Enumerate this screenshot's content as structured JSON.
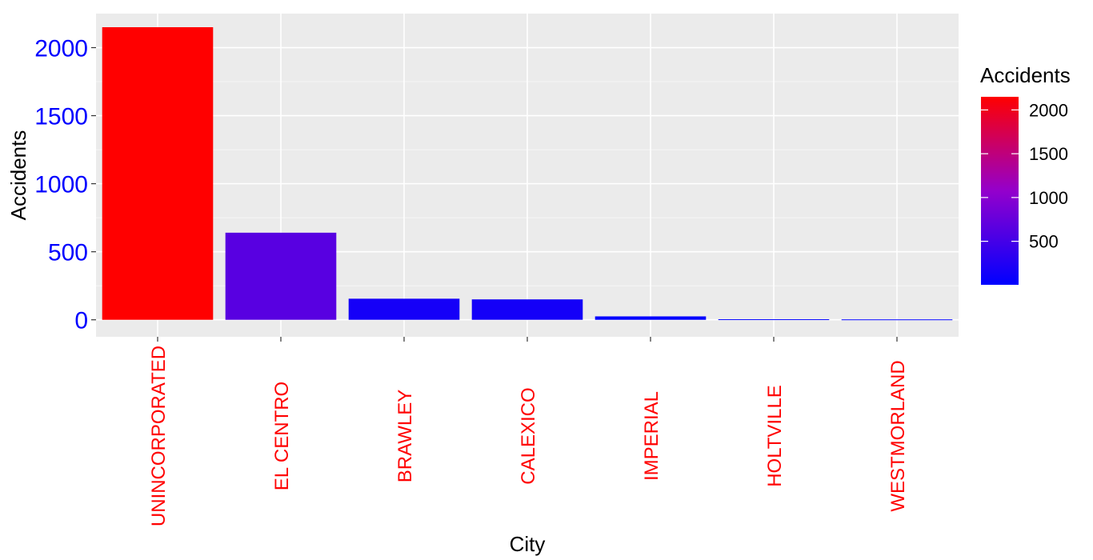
{
  "chart_data": {
    "type": "bar",
    "categories": [
      "UNINCORPORATED",
      "EL CENTRO",
      "BRAWLEY",
      "CALEXICO",
      "IMPERIAL",
      "HOLTVILLE",
      "WESTMORLAND"
    ],
    "values": [
      2150,
      640,
      155,
      150,
      25,
      4,
      3
    ],
    "xlabel": "City",
    "ylabel": "Accidents",
    "ylim": [
      -125,
      2250
    ],
    "yticks": [
      0,
      500,
      1000,
      1500,
      2000
    ],
    "grid": true,
    "legend": {
      "title": "Accidents",
      "position": "right",
      "ticks": [
        500,
        1000,
        1500,
        2000
      ],
      "range": [
        3,
        2150
      ],
      "low_color": "#0000ff",
      "high_color": "#ff0000"
    },
    "panel_color": "#ebebeb",
    "ytick_color": "#0000ff",
    "xtick_color": "#ff0000"
  }
}
